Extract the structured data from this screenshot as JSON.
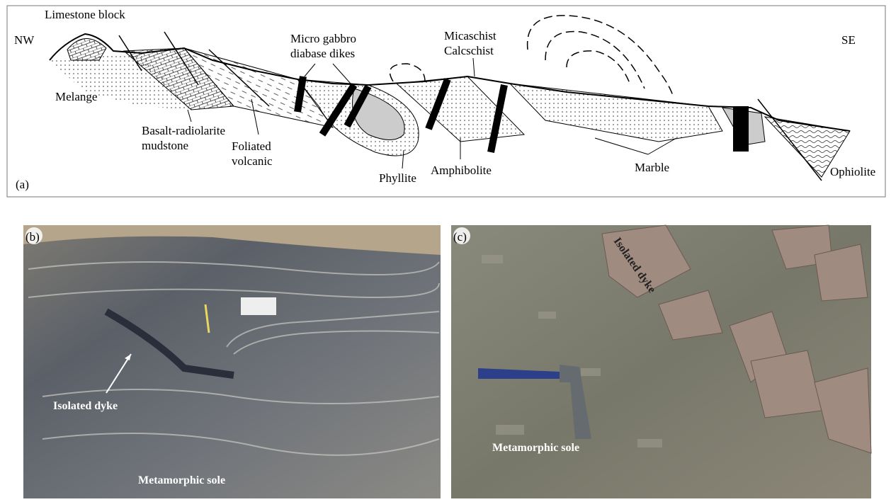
{
  "panel_a": {
    "label": "(a)",
    "left_end": "NW",
    "right_end": "SE",
    "labels": [
      [
        "Limestone block"
      ],
      [
        "Melange"
      ],
      [
        "Basalt-radiolarite",
        "mudstone"
      ],
      [
        "Foliated",
        "volcanic"
      ],
      [
        "Micro gabbro",
        "diabase dikes"
      ],
      [
        "Phyllite"
      ],
      [
        "Micaschist",
        "Calcschist"
      ],
      [
        "Amphibolite"
      ],
      [
        "Marble"
      ],
      [
        "Ophiolite"
      ]
    ]
  },
  "panel_b": {
    "label": "(b)",
    "annotations": [
      "Isolated dyke",
      "Metamorphic sole"
    ]
  },
  "panel_c": {
    "label": "(c)",
    "annotations": [
      "Isolated dyke",
      "Metamorphic sole"
    ]
  }
}
